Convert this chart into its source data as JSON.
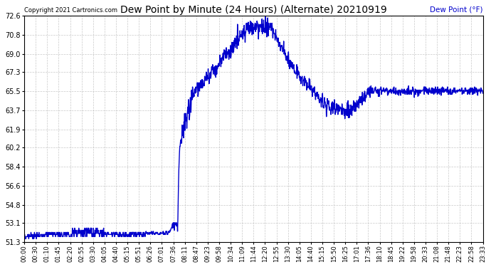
{
  "title": "Dew Point by Minute (24 Hours) (Alternate) 20210919",
  "ylabel": "Dew Point (°F)",
  "copyright": "Copyright 2021 Cartronics.com",
  "line_color": "#0000cc",
  "ylabel_color": "#0000cc",
  "background_color": "#ffffff",
  "grid_color": "#bbbbbb",
  "title_color": "#000000",
  "ylim": [
    51.3,
    72.6
  ],
  "yticks": [
    51.3,
    53.1,
    54.8,
    56.6,
    58.4,
    60.2,
    61.9,
    63.7,
    65.5,
    67.3,
    69.0,
    70.8,
    72.6
  ],
  "total_minutes": 1440,
  "xtick_labels": [
    "00:00",
    "00:30",
    "01:10",
    "01:45",
    "02:20",
    "02:55",
    "03:30",
    "04:05",
    "04:40",
    "05:15",
    "05:51",
    "06:26",
    "07:01",
    "07:36",
    "08:11",
    "08:47",
    "09:23",
    "09:58",
    "10:34",
    "11:09",
    "11:44",
    "12:20",
    "12:55",
    "13:30",
    "14:05",
    "14:40",
    "15:15",
    "15:50",
    "16:25",
    "17:01",
    "17:36",
    "18:10",
    "18:45",
    "19:22",
    "19:58",
    "20:33",
    "21:08",
    "21:48",
    "22:23",
    "22:58",
    "23:33"
  ],
  "line_width": 1.0,
  "title_fontsize": 10,
  "tick_fontsize": 7,
  "xtick_fontsize": 6
}
